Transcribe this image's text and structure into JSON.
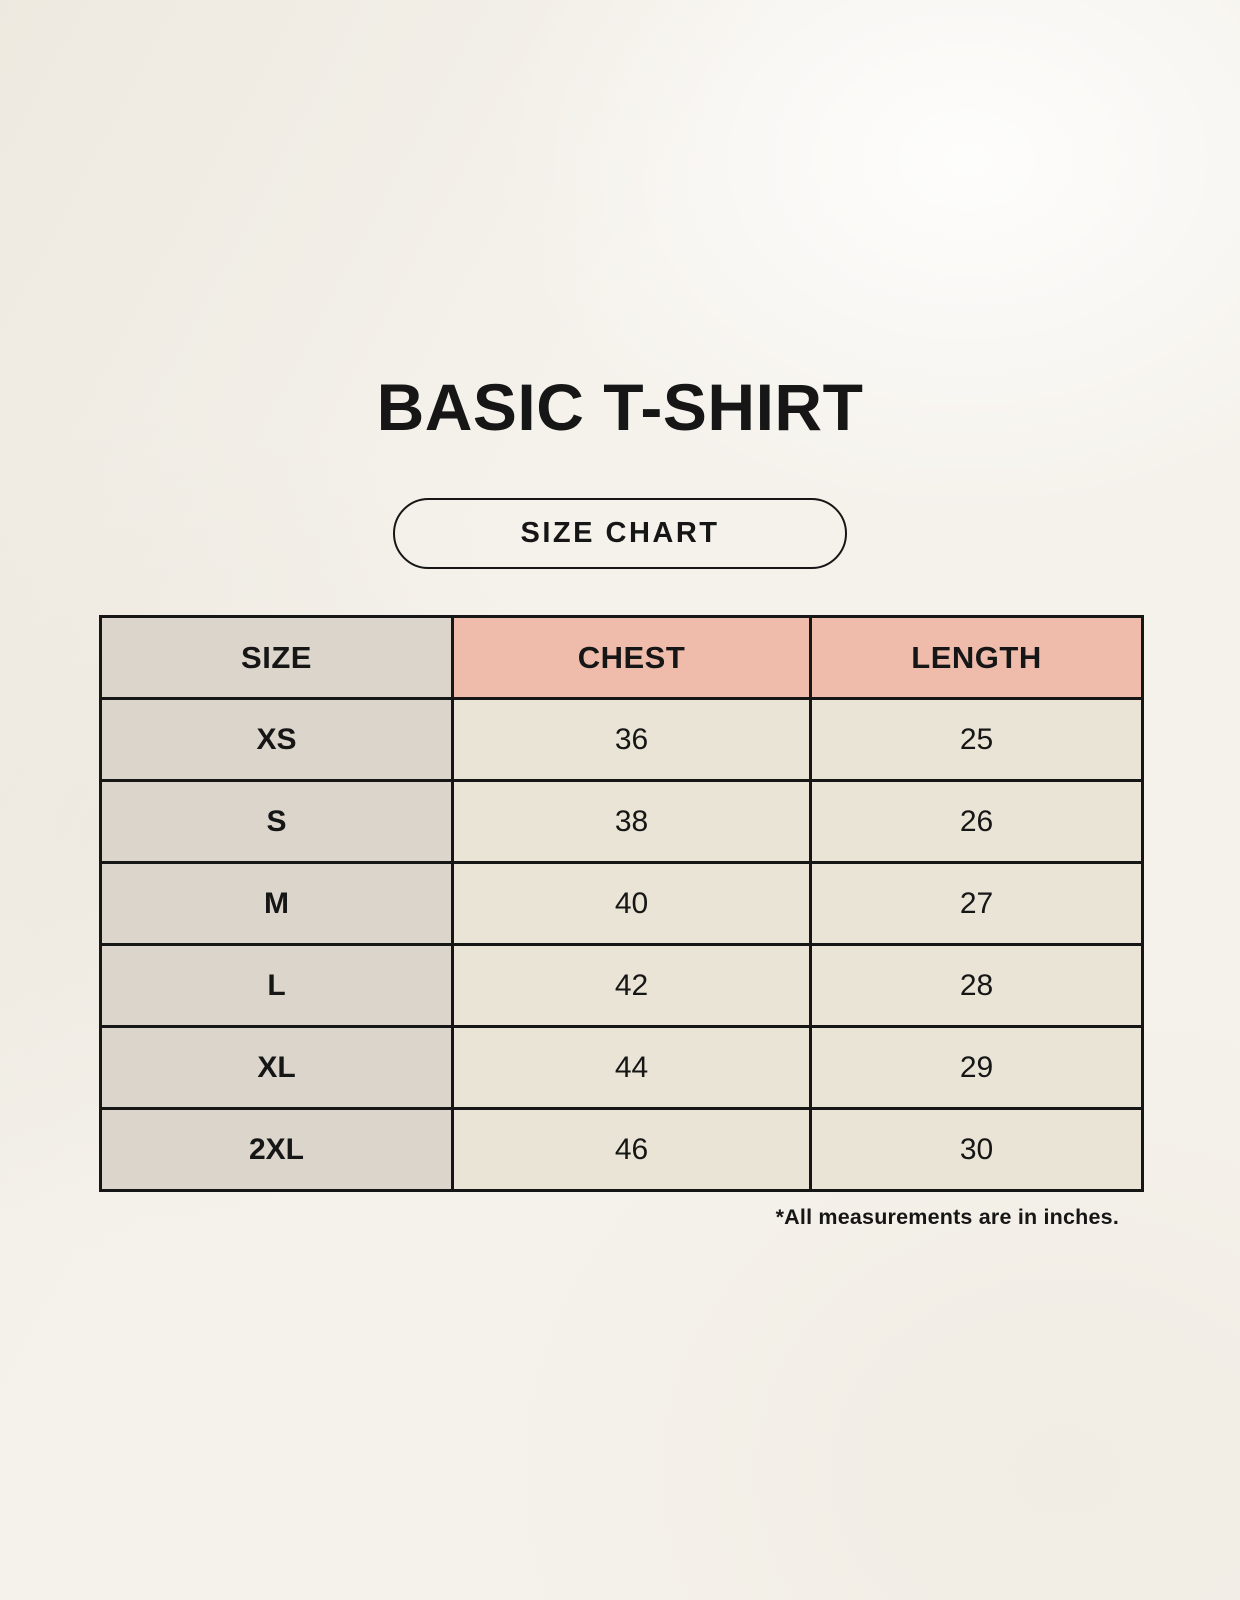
{
  "title": "BASIC T-SHIRT",
  "badge": {
    "label": "SIZE CHART"
  },
  "footnote": "*All measurements are in inches.",
  "chart_data": {
    "type": "table",
    "title": "BASIC T-SHIRT",
    "columns": [
      "SIZE",
      "CHEST",
      "LENGTH"
    ],
    "rows": [
      [
        "XS",
        "36",
        "25"
      ],
      [
        "S",
        "38",
        "26"
      ],
      [
        "M",
        "40",
        "27"
      ],
      [
        "L",
        "42",
        "28"
      ],
      [
        "XL",
        "44",
        "29"
      ],
      [
        "2XL",
        "46",
        "30"
      ]
    ],
    "units": "inches",
    "note": "*All measurements are in inches."
  },
  "colors": {
    "background": "#f5f2ec",
    "size_column_bg": "#dcd5cc",
    "measure_header_bg": "#efbcab",
    "value_cell_bg": "#eae4d7",
    "border": "#161616",
    "text": "#161616"
  }
}
